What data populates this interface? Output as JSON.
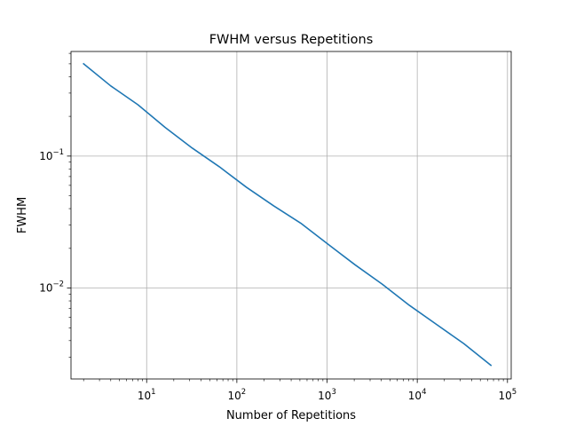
{
  "chart_data": {
    "type": "line",
    "title": "FWHM versus Repetitions",
    "xlabel": "Number of Repetitions",
    "ylabel": "FWHM",
    "x_scale": "log",
    "y_scale": "log",
    "xlim": [
      1.45,
      110000
    ],
    "ylim": [
      0.00205,
      0.62
    ],
    "grid": true,
    "x_major_ticks": [
      {
        "value": 10,
        "base": "10",
        "exp": "1"
      },
      {
        "value": 100,
        "base": "10",
        "exp": "2"
      },
      {
        "value": 1000,
        "base": "10",
        "exp": "3"
      },
      {
        "value": 10000,
        "base": "10",
        "exp": "4"
      },
      {
        "value": 100000,
        "base": "10",
        "exp": "5"
      }
    ],
    "y_major_ticks": [
      {
        "value": 0.1,
        "base": "10",
        "exp": "−1"
      },
      {
        "value": 0.01,
        "base": "10",
        "exp": "−2"
      }
    ],
    "series": [
      {
        "color": "#1f77b4",
        "x": [
          2,
          4,
          8,
          16,
          32,
          64,
          128,
          256,
          512,
          1024,
          2048,
          4096,
          8192,
          16384,
          32768,
          65536
        ],
        "y": [
          0.5,
          0.34,
          0.245,
          0.165,
          0.115,
          0.083,
          0.058,
          0.042,
          0.031,
          0.0215,
          0.015,
          0.0107,
          0.0074,
          0.0053,
          0.0038,
          0.0026
        ]
      }
    ]
  }
}
